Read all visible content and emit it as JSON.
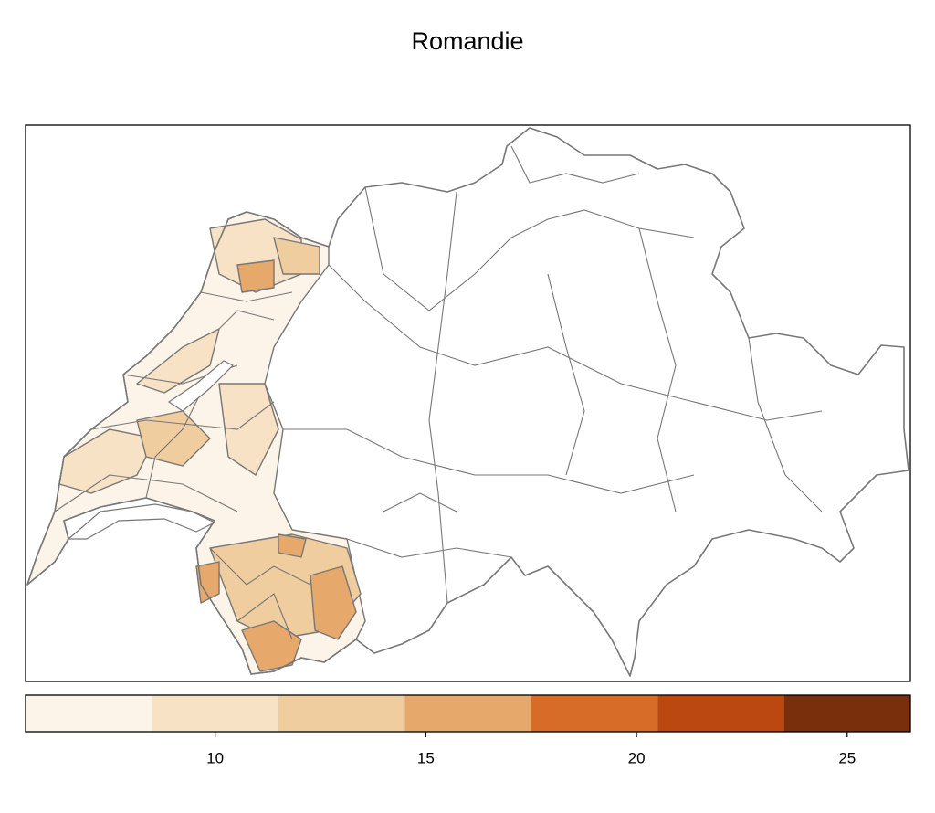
{
  "title": "Romandie",
  "legend": {
    "bins": [
      5.5,
      8.5,
      11.5,
      14.5,
      17.5,
      20.5,
      23.5,
      26.5
    ],
    "colors": [
      "#fcf4e8",
      "#f7e2c6",
      "#f0cd9f",
      "#e7a86b",
      "#d66c27",
      "#bb4810",
      "#7a2f0c"
    ],
    "xticks": [
      10,
      15,
      20,
      25
    ]
  }
}
